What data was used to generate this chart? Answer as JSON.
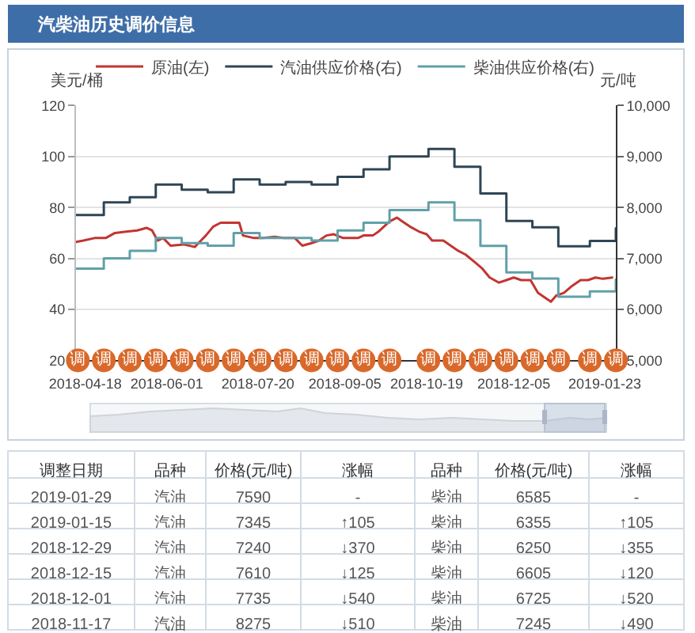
{
  "chart_data": [
    {
      "type": "line",
      "title": "汽柴油历史调价信息",
      "ylabel": "美元/桶",
      "y2label": "元/吨",
      "xlim": [
        "2018-04-13",
        "2019-01-29"
      ],
      "xticks": [
        "2018-04-18",
        "2018-06-01",
        "2018-07-20",
        "2018-09-05",
        "2018-10-19",
        "2018-12-05",
        "2019-01-23"
      ],
      "ylim": [
        20,
        120
      ],
      "yticks": [
        20,
        40,
        60,
        80,
        100,
        120
      ],
      "y2lim": [
        5000,
        10000
      ],
      "y2ticks": [
        {
          "value": 5000,
          "label": "5,000"
        },
        {
          "value": 6000,
          "label": "6,000"
        },
        {
          "value": 7000,
          "label": "7,000"
        },
        {
          "value": 8000,
          "label": "8,000"
        },
        {
          "value": 9000,
          "label": "9,000"
        },
        {
          "value": 10000,
          "label": "10,000"
        }
      ],
      "grid": "y",
      "legend": "top",
      "series": [
        {
          "name": "原油(左)",
          "color": "#c23531",
          "x": [
            "2018-04-13",
            "2018-04-17",
            "2018-04-23",
            "2018-04-29",
            "2018-05-04",
            "2018-05-10",
            "2018-05-16",
            "2018-05-21",
            "2018-05-24",
            "2018-05-27",
            "2018-05-30",
            "2018-06-03",
            "2018-06-10",
            "2018-06-16",
            "2018-06-22",
            "2018-06-26",
            "2018-06-30",
            "2018-07-06",
            "2018-07-10",
            "2018-07-12",
            "2018-07-18",
            "2018-07-23",
            "2018-07-29",
            "2018-08-03",
            "2018-08-09",
            "2018-08-13",
            "2018-08-18",
            "2018-08-22",
            "2018-08-26",
            "2018-08-30",
            "2018-09-04",
            "2018-09-07",
            "2018-09-12",
            "2018-09-15",
            "2018-09-20",
            "2018-09-23",
            "2018-09-26",
            "2018-09-29",
            "2018-10-03",
            "2018-10-06",
            "2018-10-10",
            "2018-10-15",
            "2018-10-19",
            "2018-10-22",
            "2018-10-28",
            "2018-11-01",
            "2018-11-05",
            "2018-11-09",
            "2018-11-14",
            "2018-11-18",
            "2018-11-22",
            "2018-11-27",
            "2018-12-01",
            "2018-12-05",
            "2018-12-09",
            "2018-12-14",
            "2018-12-18",
            "2018-12-22",
            "2018-12-25",
            "2018-12-28",
            "2019-01-01",
            "2019-01-05",
            "2019-01-10",
            "2019-01-14",
            "2019-01-18",
            "2019-01-22",
            "2019-01-27"
          ],
          "values": [
            66.5,
            67,
            68,
            68,
            70,
            70.5,
            71,
            72,
            71,
            67,
            68,
            65,
            65.5,
            64.5,
            69,
            72.5,
            74,
            74,
            74,
            69,
            68,
            68,
            68.5,
            68,
            68,
            65,
            66,
            67,
            69,
            69.5,
            68,
            68,
            68,
            69,
            69,
            70.5,
            72.5,
            74.5,
            76,
            74.5,
            72.5,
            70.5,
            69.5,
            67,
            67,
            65,
            63,
            61.5,
            58.5,
            56,
            52.5,
            50.5,
            51.5,
            52.5,
            51.5,
            51.5,
            46.5,
            44.5,
            43,
            45.5,
            46.5,
            49,
            51.5,
            51.5,
            52.5,
            52,
            52.5
          ]
        },
        {
          "name": "汽油供应价格(右)",
          "type": "step",
          "axis": "y2",
          "color": "#2f4554",
          "x": [
            "2018-04-13",
            "2018-04-28",
            "2018-05-12",
            "2018-05-26",
            "2018-06-09",
            "2018-06-23",
            "2018-07-07",
            "2018-07-21",
            "2018-08-04",
            "2018-08-18",
            "2018-09-01",
            "2018-09-15",
            "2018-09-29",
            "2018-10-20",
            "2018-11-03",
            "2018-11-17",
            "2018-12-01",
            "2018-12-15",
            "2018-12-29",
            "2019-01-15",
            "2019-01-29"
          ],
          "values": [
            7850,
            8100,
            8200,
            8450,
            8350,
            8300,
            8550,
            8450,
            8500,
            8450,
            8600,
            8750,
            9000,
            9150,
            8800,
            8275,
            7735,
            7610,
            7240,
            7345,
            7590
          ]
        },
        {
          "name": "柴油供应价格(右)",
          "type": "step",
          "axis": "y2",
          "color": "#61a0a8",
          "x": [
            "2018-04-13",
            "2018-04-28",
            "2018-05-12",
            "2018-05-26",
            "2018-06-09",
            "2018-06-23",
            "2018-07-07",
            "2018-07-21",
            "2018-08-04",
            "2018-08-18",
            "2018-09-01",
            "2018-09-15",
            "2018-09-29",
            "2018-10-20",
            "2018-11-03",
            "2018-11-17",
            "2018-12-01",
            "2018-12-15",
            "2018-12-29",
            "2019-01-15",
            "2019-01-29"
          ],
          "values": [
            6800,
            7000,
            7150,
            7400,
            7300,
            7250,
            7500,
            7400,
            7400,
            7350,
            7550,
            7700,
            7950,
            8100,
            7750,
            7245,
            6725,
            6605,
            6250,
            6355,
            6585
          ]
        },
        {
          "type": "scatter",
          "marker": "circle",
          "color": "#d9692b",
          "x": [
            "2018-04-14",
            "2018-04-28",
            "2018-05-12",
            "2018-05-26",
            "2018-06-09",
            "2018-06-23",
            "2018-07-07",
            "2018-07-21",
            "2018-08-04",
            "2018-08-18",
            "2018-09-01",
            "2018-09-15",
            "2018-09-29",
            "2018-10-20",
            "2018-11-03",
            "2018-11-17",
            "2018-12-01",
            "2018-12-15",
            "2018-12-29",
            "2019-01-15",
            "2019-01-29"
          ],
          "values": [
            20,
            20,
            20,
            20,
            20,
            20,
            20,
            20,
            20,
            20,
            20,
            20,
            20,
            20,
            20,
            20,
            20,
            20,
            20,
            20,
            20
          ],
          "value_labels": [
            "调",
            "调",
            "调",
            "调",
            "调",
            "调",
            "调",
            "调",
            "调",
            "调",
            "调",
            "调",
            "调",
            "调",
            "调",
            "调",
            "调",
            "调",
            "调",
            "调",
            "调"
          ]
        }
      ]
    },
    {
      "type": "other",
      "categories": [
        "调整日期",
        "品种",
        "价格(元/吨)",
        "涨幅",
        "品种",
        "价格(元/吨)",
        "涨幅"
      ],
      "cell_labels": [
        [
          "2019-01-29",
          "汽油",
          "7590",
          "-",
          "柴油",
          "6585",
          "-"
        ],
        [
          "2019-01-15",
          "汽油",
          "7345",
          "↑105",
          "柴油",
          "6355",
          "↑105"
        ],
        [
          "2018-12-29",
          "汽油",
          "7240",
          "↓370",
          "柴油",
          "6250",
          "↓355"
        ],
        [
          "2018-12-15",
          "汽油",
          "7610",
          "↓125",
          "柴油",
          "6605",
          "↓120"
        ],
        [
          "2018-12-01",
          "汽油",
          "7735",
          "↓540",
          "柴油",
          "6725",
          "↓520"
        ],
        [
          "2018-11-17",
          "汽油",
          "8275",
          "↓510",
          "柴油",
          "7245",
          "↓490"
        ]
      ]
    }
  ]
}
